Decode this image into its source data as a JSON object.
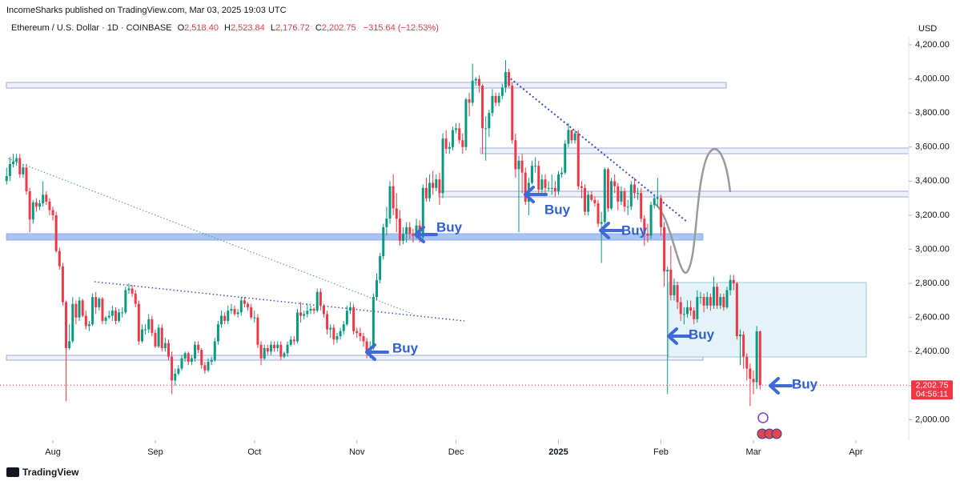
{
  "header": {
    "publisher": "IncomeSharks published on TradingView.com, Mar 03, 2025 19:03 UTC"
  },
  "chart_data": {
    "type": "candlestick",
    "title": "Ethereum / U.S. Dollar · 1D · COINBASE",
    "ohlc_legend": {
      "open": {
        "prefix": "O",
        "text": "2,518.40"
      },
      "high": {
        "prefix": "H",
        "text": "2,523.84"
      },
      "low": {
        "prefix": "L",
        "text": "2,176.72"
      },
      "close": {
        "prefix": "C",
        "text": "2,202.75"
      },
      "change": "−315.64 (−12.53%)"
    },
    "open": [
      3400,
      3430,
      3500,
      3515,
      3535,
      3440,
      3480,
      3340,
      3175,
      3275,
      3250,
      3270,
      3320,
      3280,
      3230,
      3200,
      2990,
      2900,
      2690,
      2420,
      2460,
      2680,
      2600,
      2700,
      2610,
      2550,
      2560,
      2720,
      2660,
      2710,
      2580,
      2600,
      2610,
      2640,
      2580,
      2630,
      2630,
      2760,
      2770,
      2740,
      2680,
      2460,
      2530,
      2530,
      2590,
      2510,
      2430,
      2540,
      2420,
      2450,
      2370,
      2230,
      2270,
      2300,
      2360,
      2390,
      2340,
      2360,
      2440,
      2410,
      2320,
      2290,
      2340,
      2350,
      2460,
      2560,
      2610,
      2580,
      2640,
      2650,
      2620,
      2630,
      2700,
      2680,
      2660,
      2600,
      2600,
      2440,
      2360,
      2420,
      2400,
      2440,
      2420,
      2440,
      2370,
      2390,
      2440,
      2470,
      2460,
      2630,
      2610,
      2620,
      2640,
      2650,
      2640,
      2750,
      2670,
      2620,
      2530,
      2540,
      2470,
      2490,
      2520,
      2560,
      2640,
      2660,
      2520,
      2510,
      2490,
      2460,
      2400,
      2420,
      2720,
      2820,
      2960,
      3130,
      3180,
      3370,
      3240,
      3180,
      3050,
      3090,
      3130,
      3090,
      3080,
      3140,
      3070,
      3360,
      3300,
      3390,
      3360,
      3410,
      3330,
      3650,
      3590,
      3600,
      3700,
      3710,
      3640,
      3600,
      3880,
      3860,
      3990,
      4000,
      3960,
      3710,
      3710,
      3800,
      3900,
      3860,
      3900,
      3950,
      4040,
      3960,
      3640,
      3470,
      3520,
      3450,
      3280,
      3390,
      3490,
      3490,
      3350,
      3410,
      3360,
      3360,
      3360,
      3340,
      3440,
      3450,
      3620,
      3700,
      3640,
      3680,
      3370,
      3360,
      3220,
      3320,
      3290,
      3270,
      3150,
      3160,
      3470,
      3240,
      3400,
      3370,
      3280,
      3340,
      3250,
      3250,
      3380,
      3330,
      3330,
      3180,
      3090,
      3080,
      3260,
      3300,
      3300,
      3130,
      2870,
      2880,
      2730,
      2790,
      2690,
      2620,
      2620,
      2660,
      2640,
      2590,
      2720,
      2720,
      2670,
      2720,
      2670,
      2780,
      2670,
      2720,
      2660,
      2760,
      2820,
      2800,
      2490,
      2500,
      2370,
      2300,
      2240,
      2220,
      2518.4
    ],
    "high": [
      3480,
      3540,
      3560,
      3560,
      3560,
      3500,
      3500,
      3360,
      3290,
      3300,
      3290,
      3400,
      3340,
      3300,
      3250,
      3220,
      3010,
      2920,
      2700,
      2560,
      2720,
      2700,
      2720,
      2710,
      2640,
      2580,
      2740,
      2750,
      2720,
      2720,
      2610,
      2640,
      2670,
      2660,
      2650,
      2660,
      2780,
      2800,
      2790,
      2760,
      2700,
      2560,
      2560,
      2620,
      2610,
      2530,
      2560,
      2560,
      2480,
      2470,
      2400,
      2300,
      2320,
      2380,
      2400,
      2400,
      2380,
      2460,
      2460,
      2420,
      2340,
      2360,
      2370,
      2480,
      2580,
      2640,
      2630,
      2670,
      2680,
      2670,
      2650,
      2720,
      2720,
      2690,
      2680,
      2640,
      2620,
      2460,
      2440,
      2440,
      2460,
      2460,
      2460,
      2460,
      2400,
      2460,
      2490,
      2490,
      2650,
      2690,
      2640,
      2680,
      2670,
      2660,
      2770,
      2770,
      2680,
      2640,
      2560,
      2560,
      2510,
      2540,
      2580,
      2670,
      2690,
      2680,
      2540,
      2540,
      2510,
      2480,
      2460,
      2740,
      2860,
      2980,
      3150,
      3250,
      3400,
      3440,
      3330,
      3230,
      3130,
      3160,
      3160,
      3120,
      3180,
      3170,
      3380,
      3420,
      3440,
      3460,
      3440,
      3450,
      3680,
      3700,
      3630,
      3720,
      3740,
      3740,
      3680,
      3890,
      3920,
      4090,
      4010,
      4020,
      3970,
      3780,
      3820,
      3940,
      3920,
      3920,
      3970,
      4110,
      4060,
      3980,
      3680,
      3550,
      3560,
      3480,
      3420,
      3520,
      3540,
      3520,
      3440,
      3440,
      3400,
      3440,
      3400,
      3460,
      3480,
      3640,
      3740,
      3700,
      3700,
      3700,
      3400,
      3380,
      3340,
      3340,
      3310,
      3290,
      3220,
      3480,
      3480,
      3420,
      3440,
      3390,
      3370,
      3360,
      3290,
      3400,
      3420,
      3360,
      3360,
      3200,
      3150,
      3280,
      3320,
      3420,
      3320,
      3160,
      2900,
      3020,
      2830,
      2810,
      2720,
      2660,
      2700,
      2700,
      2660,
      2760,
      2750,
      2740,
      2750,
      2740,
      2840,
      2800,
      2740,
      2740,
      2780,
      2850,
      2850,
      2810,
      2530,
      2520,
      2390,
      2330,
      2290,
      2550,
      2523.84
    ],
    "low": [
      3380,
      3400,
      3480,
      3490,
      3420,
      3420,
      3320,
      3100,
      3150,
      3220,
      3230,
      3250,
      3260,
      3200,
      3170,
      2980,
      2880,
      2670,
      2110,
      2410,
      2450,
      2560,
      2580,
      2600,
      2530,
      2520,
      2550,
      2620,
      2640,
      2560,
      2560,
      2590,
      2580,
      2560,
      2570,
      2600,
      2620,
      2740,
      2720,
      2660,
      2440,
      2450,
      2500,
      2510,
      2490,
      2420,
      2420,
      2400,
      2400,
      2350,
      2150,
      2200,
      2260,
      2290,
      2340,
      2320,
      2320,
      2340,
      2390,
      2300,
      2270,
      2280,
      2320,
      2340,
      2440,
      2540,
      2560,
      2560,
      2620,
      2610,
      2600,
      2610,
      2660,
      2640,
      2590,
      2570,
      2420,
      2320,
      2350,
      2380,
      2380,
      2400,
      2400,
      2350,
      2360,
      2370,
      2430,
      2440,
      2450,
      2570,
      2590,
      2600,
      2620,
      2620,
      2630,
      2640,
      2600,
      2500,
      2480,
      2440,
      2450,
      2470,
      2500,
      2550,
      2620,
      2500,
      2480,
      2460,
      2430,
      2360,
      2360,
      2410,
      2700,
      2800,
      2940,
      3080,
      3150,
      3200,
      3100,
      3020,
      3030,
      3040,
      3060,
      3040,
      3060,
      3040,
      3060,
      3280,
      3280,
      3320,
      3340,
      3260,
      3300,
      3560,
      3560,
      3580,
      3680,
      3620,
      3560,
      3580,
      3780,
      3840,
      3960,
      3920,
      3560,
      3520,
      3660,
      3780,
      3840,
      3840,
      3880,
      3920,
      3950,
      3620,
      3420,
      3100,
      3330,
      3260,
      3200,
      3380,
      3450,
      3330,
      3330,
      3320,
      3340,
      3320,
      3310,
      3320,
      3420,
      3440,
      3600,
      3620,
      3620,
      3350,
      3300,
      3200,
      3200,
      3280,
      3250,
      3130,
      2920,
      3140,
      3220,
      3230,
      3330,
      3230,
      3260,
      3220,
      3200,
      3230,
      3300,
      3290,
      3160,
      3020,
      3040,
      3060,
      3240,
      3250,
      3080,
      2780,
      2150,
      2700,
      2700,
      2650,
      2580,
      2560,
      2600,
      2610,
      2560,
      2570,
      2680,
      2630,
      2650,
      2640,
      2650,
      2650,
      2650,
      2640,
      2650,
      2730,
      2760,
      2470,
      2320,
      2300,
      2230,
      2080,
      2150,
      2180,
      2176.72
    ],
    "close": [
      3430,
      3500,
      3515,
      3535,
      3440,
      3480,
      3340,
      3175,
      3275,
      3250,
      3270,
      3320,
      3280,
      3230,
      3200,
      2990,
      2900,
      2690,
      2420,
      2460,
      2680,
      2600,
      2700,
      2610,
      2550,
      2560,
      2720,
      2660,
      2710,
      2580,
      2600,
      2610,
      2640,
      2580,
      2630,
      2630,
      2760,
      2770,
      2740,
      2680,
      2460,
      2530,
      2530,
      2590,
      2510,
      2430,
      2540,
      2420,
      2450,
      2370,
      2230,
      2270,
      2300,
      2360,
      2390,
      2340,
      2360,
      2440,
      2410,
      2320,
      2290,
      2340,
      2350,
      2460,
      2560,
      2610,
      2580,
      2640,
      2650,
      2620,
      2630,
      2700,
      2680,
      2660,
      2600,
      2600,
      2440,
      2360,
      2420,
      2400,
      2440,
      2420,
      2440,
      2370,
      2390,
      2440,
      2470,
      2460,
      2630,
      2610,
      2620,
      2640,
      2650,
      2640,
      2750,
      2670,
      2620,
      2530,
      2540,
      2470,
      2490,
      2520,
      2560,
      2640,
      2660,
      2520,
      2510,
      2490,
      2460,
      2400,
      2420,
      2720,
      2820,
      2960,
      3130,
      3180,
      3370,
      3240,
      3180,
      3050,
      3090,
      3130,
      3090,
      3080,
      3140,
      3070,
      3360,
      3300,
      3390,
      3360,
      3410,
      3330,
      3650,
      3590,
      3600,
      3700,
      3710,
      3640,
      3600,
      3880,
      3860,
      3990,
      4000,
      3960,
      3710,
      3710,
      3800,
      3900,
      3860,
      3900,
      3950,
      4040,
      3960,
      3640,
      3470,
      3520,
      3450,
      3280,
      3390,
      3490,
      3490,
      3350,
      3410,
      3360,
      3360,
      3360,
      3340,
      3440,
      3450,
      3620,
      3700,
      3640,
      3680,
      3370,
      3360,
      3220,
      3320,
      3290,
      3270,
      3150,
      3160,
      3470,
      3240,
      3400,
      3370,
      3280,
      3340,
      3250,
      3250,
      3380,
      3330,
      3330,
      3180,
      3090,
      3080,
      3260,
      3300,
      3300,
      3130,
      2870,
      2880,
      2730,
      2790,
      2690,
      2620,
      2620,
      2660,
      2640,
      2590,
      2720,
      2720,
      2670,
      2720,
      2670,
      2780,
      2670,
      2720,
      2660,
      2760,
      2820,
      2800,
      2490,
      2500,
      2370,
      2300,
      2240,
      2220,
      2518.4,
      2202.75
    ],
    "up_color": "#089981",
    "down_color": "#f23645",
    "xlim": [
      -2,
      273
    ],
    "xticks": [
      {
        "value": 14,
        "label": "Aug"
      },
      {
        "value": 45,
        "label": "Sep"
      },
      {
        "value": 75,
        "label": "Oct"
      },
      {
        "value": 106,
        "label": "Nov"
      },
      {
        "value": 136,
        "label": "Dec"
      },
      {
        "value": 167,
        "label": "2025"
      },
      {
        "value": 198,
        "label": "Feb"
      },
      {
        "value": 226,
        "label": "Mar"
      },
      {
        "value": 257,
        "label": "Apr"
      }
    ],
    "ylim": [
      1880,
      4275
    ],
    "yticks": [
      {
        "value": 2000,
        "label": "2,000.00"
      },
      {
        "value": 2200,
        "label": "2,200.00"
      },
      {
        "value": 2400,
        "label": "2,400.00"
      },
      {
        "value": 2600,
        "label": "2,600.00"
      },
      {
        "value": 2800,
        "label": "2,800.00"
      },
      {
        "value": 3000,
        "label": "3,000.00"
      },
      {
        "value": 3200,
        "label": "3,200.00"
      },
      {
        "value": 3400,
        "label": "3,400.00"
      },
      {
        "value": 3600,
        "label": "3,600.00"
      },
      {
        "value": 3800,
        "label": "3,800.00"
      },
      {
        "value": 4000,
        "label": "4,000.00"
      },
      {
        "value": 4200,
        "label": "4,200.00"
      }
    ],
    "y_unit": "USD",
    "last_price": {
      "value": 2202.75,
      "label": "2,202.75"
    },
    "countdown": "04:56:11",
    "annotations": [
      "Buy",
      "Buy",
      "Buy",
      "Buy",
      "Buy",
      "Buy"
    ]
  },
  "footer": {
    "brand": "TradingView"
  }
}
